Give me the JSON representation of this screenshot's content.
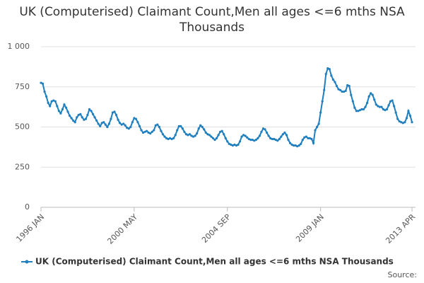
{
  "chart_data": {
    "type": "line",
    "title": "UK (Computerised) Claimant Count,Men all ages <=6 mths NSA Thousands",
    "categories": [
      "1996 JAN",
      null,
      null,
      null,
      null,
      null,
      null,
      null,
      null,
      null,
      null,
      null,
      null,
      null,
      null,
      null,
      null,
      null,
      null,
      null,
      null,
      null,
      null,
      null,
      null,
      null,
      null,
      null,
      null,
      null,
      null,
      null,
      null,
      null,
      null,
      null,
      null,
      null,
      null,
      null,
      null,
      null,
      null,
      null,
      null,
      null,
      null,
      null,
      null,
      null,
      null,
      null,
      "2000 MAY",
      null,
      null,
      null,
      null,
      null,
      null,
      null,
      null,
      null,
      null,
      null,
      null,
      null,
      null,
      null,
      null,
      null,
      null,
      null,
      null,
      null,
      null,
      null,
      null,
      null,
      null,
      null,
      null,
      null,
      null,
      null,
      null,
      null,
      null,
      null,
      null,
      null,
      null,
      null,
      null,
      null,
      null,
      null,
      null,
      null,
      null,
      null,
      null,
      null,
      null,
      null,
      "2004 SEP",
      null,
      null,
      null,
      null,
      null,
      null,
      null,
      null,
      null,
      null,
      null,
      null,
      null,
      null,
      null,
      null,
      null,
      null,
      null,
      null,
      null,
      null,
      null,
      null,
      null,
      null,
      null,
      null,
      null,
      null,
      null,
      null,
      null,
      null,
      null,
      null,
      null,
      null,
      null,
      null,
      null,
      null,
      null,
      null,
      null,
      null,
      null,
      null,
      null,
      null,
      null,
      "2009 JAN",
      null,
      null,
      null,
      null,
      null,
      null,
      null,
      null,
      null,
      null,
      null,
      null,
      null,
      null,
      null,
      null,
      null,
      null,
      null,
      null,
      null,
      null,
      null,
      null,
      null,
      null,
      null,
      null,
      null,
      null,
      null,
      null,
      null,
      null,
      null,
      null,
      null,
      null,
      null,
      null,
      null,
      null,
      null,
      null,
      null,
      null,
      null,
      null,
      null,
      null,
      "2013 APR"
    ],
    "series": [
      {
        "name": "UK (Computerised) Claimant Count,Men all ages <=6 mths NSA Thousands",
        "color": "#1f7fbf",
        "values": [
          775,
          770,
          720,
          690,
          650,
          630,
          660,
          665,
          660,
          630,
          600,
          585,
          610,
          640,
          620,
          595,
          570,
          555,
          540,
          530,
          560,
          575,
          580,
          560,
          545,
          550,
          575,
          610,
          600,
          580,
          560,
          540,
          520,
          505,
          525,
          530,
          515,
          500,
          520,
          550,
          590,
          595,
          575,
          545,
          525,
          515,
          520,
          510,
          495,
          490,
          500,
          530,
          555,
          550,
          530,
          505,
          480,
          465,
          470,
          475,
          465,
          460,
          470,
          480,
          510,
          515,
          500,
          475,
          455,
          440,
          430,
          425,
          430,
          425,
          430,
          450,
          480,
          505,
          505,
          490,
          470,
          455,
          450,
          455,
          445,
          440,
          445,
          460,
          490,
          510,
          500,
          485,
          465,
          455,
          450,
          440,
          430,
          420,
          430,
          450,
          470,
          475,
          455,
          430,
          410,
          395,
          390,
          385,
          390,
          385,
          390,
          410,
          440,
          450,
          445,
          435,
          425,
          420,
          420,
          415,
          420,
          430,
          445,
          470,
          490,
          485,
          465,
          445,
          430,
          425,
          425,
          420,
          415,
          425,
          440,
          455,
          465,
          450,
          420,
          400,
          390,
          385,
          385,
          380,
          385,
          395,
          420,
          435,
          440,
          430,
          430,
          425,
          400,
          480,
          500,
          520,
          590,
          660,
          730,
          830,
          865,
          860,
          820,
          795,
          780,
          755,
          735,
          730,
          720,
          720,
          725,
          760,
          755,
          700,
          660,
          620,
          600,
          600,
          605,
          610,
          610,
          625,
          650,
          690,
          710,
          700,
          670,
          640,
          630,
          625,
          625,
          610,
          605,
          610,
          635,
          660,
          665,
          630,
          590,
          550,
          535,
          530,
          525,
          530,
          555,
          600,
          570,
          530
        ]
      }
    ],
    "ylim": [
      0,
      1000
    ],
    "yticks": [
      0,
      250,
      500,
      750,
      {
        "value": 1000,
        "label": "1 000"
      }
    ],
    "grid": true,
    "source": "Source:"
  }
}
